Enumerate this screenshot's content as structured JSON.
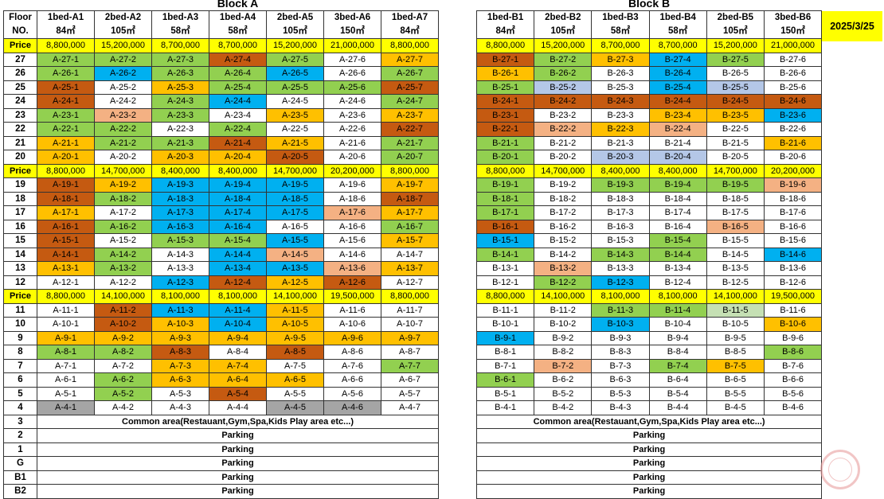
{
  "date": "2025/3/25",
  "colors": {
    "W": "#ffffff",
    "G": "#92d050",
    "O": "#ffc000",
    "R": "#c55a11",
    "B": "#00b0f0",
    "P": "#f4b183",
    "L": "#b4c7e7",
    "S": "#a5a5a5",
    "M": "#c5e0b4",
    "Y": "#ffff00"
  },
  "blocks": [
    {
      "id": "A",
      "title": "Block A",
      "floor_label": [
        "Floor",
        "NO."
      ],
      "price_label": "Price",
      "units": [
        {
          "type": "1bed-A1",
          "area": "84㎡"
        },
        {
          "type": "2bed-A2",
          "area": "105㎡"
        },
        {
          "type": "1bed-A3",
          "area": "58㎡"
        },
        {
          "type": "1bed-A4",
          "area": "58㎡"
        },
        {
          "type": "2bed-A5",
          "area": "105㎡"
        },
        {
          "type": "3bed-A6",
          "area": "150㎡"
        },
        {
          "type": "1bed-A7",
          "area": "84㎡"
        }
      ],
      "rows": [
        {
          "kind": "price",
          "values": [
            "8,800,000",
            "15,200,000",
            "8,700,000",
            "8,700,000",
            "15,200,000",
            "21,000,000",
            "8,800,000"
          ]
        },
        {
          "kind": "floor",
          "floor": "27",
          "colors": "GGGRGWO"
        },
        {
          "kind": "floor",
          "floor": "26",
          "colors": "GBGGBWG"
        },
        {
          "kind": "floor",
          "floor": "25",
          "colors": "RWOGGGR"
        },
        {
          "kind": "floor",
          "floor": "24",
          "colors": "RWGBWWG"
        },
        {
          "kind": "floor",
          "floor": "23",
          "colors": "GPGWOWO"
        },
        {
          "kind": "floor",
          "floor": "22",
          "colors": "GGWGWWR"
        },
        {
          "kind": "floor",
          "floor": "21",
          "colors": "OGGROWG"
        },
        {
          "kind": "floor",
          "floor": "20",
          "colors": "OWOORWG"
        },
        {
          "kind": "price",
          "values": [
            "8,800,000",
            "14,700,000",
            "8,400,000",
            "8,400,000",
            "14,700,000",
            "20,200,000",
            "8,800,000"
          ]
        },
        {
          "kind": "floor",
          "floor": "19",
          "colors": "ROBBBWO"
        },
        {
          "kind": "floor",
          "floor": "18",
          "colors": "RGBBBWR"
        },
        {
          "kind": "floor",
          "floor": "17",
          "colors": "OWBBBPO"
        },
        {
          "kind": "floor",
          "floor": "16",
          "colors": "RGBBWWG"
        },
        {
          "kind": "floor",
          "floor": "15",
          "colors": "RWGGBWO"
        },
        {
          "kind": "floor",
          "floor": "14",
          "colors": "RGWBPWW"
        },
        {
          "kind": "floor",
          "floor": "13",
          "colors": "OGWBBPO"
        },
        {
          "kind": "floor",
          "floor": "12",
          "colors": "WWBRORW"
        },
        {
          "kind": "price",
          "values": [
            "8,800,000",
            "14,100,000",
            "8,100,000",
            "8,100,000",
            "14,100,000",
            "19,500,000",
            "8,800,000"
          ]
        },
        {
          "kind": "floor",
          "floor": "11",
          "colors": "WRBBOWW"
        },
        {
          "kind": "floor",
          "floor": "10",
          "colors": "WROBOWW"
        },
        {
          "kind": "floor",
          "floor": "9",
          "colors": "OOOOOOO"
        },
        {
          "kind": "floor",
          "floor": "8",
          "colors": "GGRWRWW"
        },
        {
          "kind": "floor",
          "floor": "7",
          "colors": "WWOOWWG"
        },
        {
          "kind": "floor",
          "floor": "6",
          "colors": "WGOOOWW"
        },
        {
          "kind": "floor",
          "floor": "5",
          "colors": "WGWRWWW"
        },
        {
          "kind": "floor",
          "floor": "4",
          "colors": "SWWWSSW"
        },
        {
          "kind": "full",
          "floor": "3",
          "text": "Common area(Restauant,Gym,Spa,Kids Play area etc...)"
        },
        {
          "kind": "full",
          "floor": "2",
          "text": "Parking"
        },
        {
          "kind": "full",
          "floor": "1",
          "text": "Parking"
        },
        {
          "kind": "full",
          "floor": "G",
          "text": "Parking"
        },
        {
          "kind": "full",
          "floor": "B1",
          "text": "Parking"
        },
        {
          "kind": "full",
          "floor": "B2",
          "text": "Parking"
        }
      ]
    },
    {
      "id": "B",
      "title": "Block B",
      "units": [
        {
          "type": "1bed-B1",
          "area": "84㎡"
        },
        {
          "type": "2bed-B2",
          "area": "105㎡"
        },
        {
          "type": "1bed-B3",
          "area": "58㎡"
        },
        {
          "type": "1bed-B4",
          "area": "58㎡"
        },
        {
          "type": "2bed-B5",
          "area": "105㎡"
        },
        {
          "type": "3bed-B6",
          "area": "150㎡"
        }
      ],
      "rows": [
        {
          "kind": "price",
          "values": [
            "8,800,000",
            "15,200,000",
            "8,700,000",
            "8,700,000",
            "15,200,000",
            "21,000,000"
          ]
        },
        {
          "kind": "floor",
          "floor": "27",
          "colors": "RGOBGW"
        },
        {
          "kind": "floor",
          "floor": "26",
          "colors": "OGWBWW"
        },
        {
          "kind": "floor",
          "floor": "25",
          "colors": "GLWBLW"
        },
        {
          "kind": "floor",
          "floor": "24",
          "colors": "RRRRRR"
        },
        {
          "kind": "floor",
          "floor": "23",
          "colors": "RWWOOB"
        },
        {
          "kind": "floor",
          "floor": "22",
          "colors": "RPOPWW"
        },
        {
          "kind": "floor",
          "floor": "21",
          "colors": "GWWWWO"
        },
        {
          "kind": "floor",
          "floor": "20",
          "colors": "GWLLWW"
        },
        {
          "kind": "price",
          "values": [
            "8,800,000",
            "14,700,000",
            "8,400,000",
            "8,400,000",
            "14,700,000",
            "20,200,000"
          ]
        },
        {
          "kind": "floor",
          "floor": "19",
          "colors": "GWGGGP"
        },
        {
          "kind": "floor",
          "floor": "18",
          "colors": "GWWWWW"
        },
        {
          "kind": "floor",
          "floor": "17",
          "colors": "GWWWWW"
        },
        {
          "kind": "floor",
          "floor": "16",
          "colors": "RWWWPW"
        },
        {
          "kind": "floor",
          "floor": "15",
          "colors": "BWWGWW"
        },
        {
          "kind": "floor",
          "floor": "14",
          "colors": "GWGGWB"
        },
        {
          "kind": "floor",
          "floor": "13",
          "colors": "WPWWWW"
        },
        {
          "kind": "floor",
          "floor": "12",
          "colors": "WGBWWW"
        },
        {
          "kind": "price",
          "values": [
            "8,800,000",
            "14,100,000",
            "8,100,000",
            "8,100,000",
            "14,100,000",
            "19,500,000"
          ]
        },
        {
          "kind": "floor",
          "floor": "11",
          "colors": "WWGGMW"
        },
        {
          "kind": "floor",
          "floor": "10",
          "colors": "WWBWWO"
        },
        {
          "kind": "floor",
          "floor": "9",
          "colors": "BWWWWW"
        },
        {
          "kind": "floor",
          "floor": "8",
          "colors": "WWWWWG"
        },
        {
          "kind": "floor",
          "floor": "7",
          "colors": "WPWGOW"
        },
        {
          "kind": "floor",
          "floor": "6",
          "colors": "GWWWWW"
        },
        {
          "kind": "floor",
          "floor": "5",
          "colors": "WWWWWW"
        },
        {
          "kind": "floor",
          "floor": "4",
          "colors": "WWWWWW"
        },
        {
          "kind": "full",
          "floor": "3",
          "text": "Common area(Restauant,Gym,Spa,Kids Play area etc...)"
        },
        {
          "kind": "full",
          "floor": "2",
          "text": "Parking"
        },
        {
          "kind": "full",
          "floor": "1",
          "text": "Parking"
        },
        {
          "kind": "full",
          "floor": "G",
          "text": "Parking"
        },
        {
          "kind": "full",
          "floor": "B1",
          "text": "Parking"
        },
        {
          "kind": "full",
          "floor": "B2",
          "text": "Parking"
        }
      ]
    }
  ]
}
